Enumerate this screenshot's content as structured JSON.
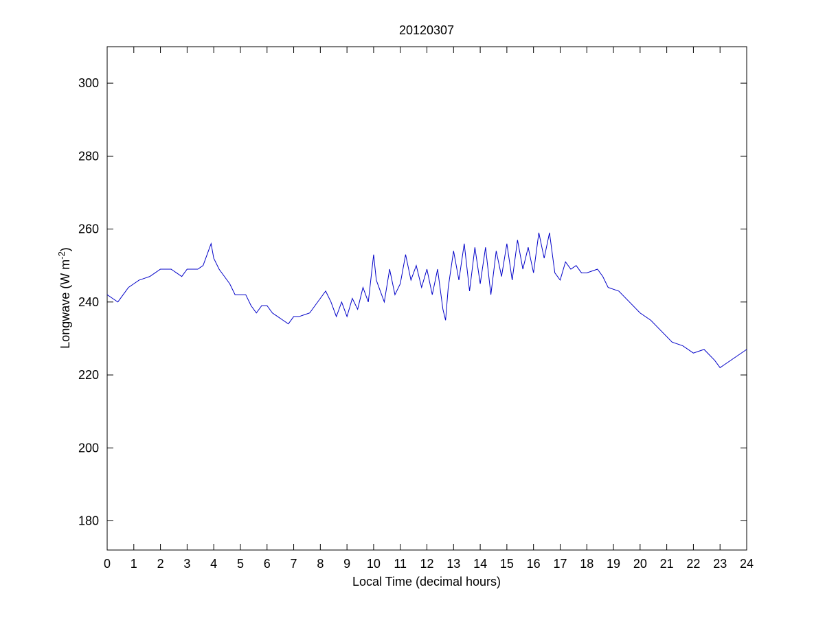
{
  "chart_data": {
    "type": "line",
    "title": "20120307",
    "xlabel": "Local Time (decimal hours)",
    "ylabel": {
      "text": "Longwave (W m",
      "sup": "-2",
      "end": ")"
    },
    "xlim": [
      0,
      24
    ],
    "ylim": [
      172,
      310
    ],
    "xticks": [
      0,
      1,
      2,
      3,
      4,
      5,
      6,
      7,
      8,
      9,
      10,
      11,
      12,
      13,
      14,
      15,
      16,
      17,
      18,
      19,
      20,
      21,
      22,
      23,
      24
    ],
    "yticks": [
      180,
      200,
      220,
      240,
      260,
      280,
      300
    ],
    "grid": false,
    "x": [
      0,
      0.2,
      0.4,
      0.6,
      0.8,
      1.0,
      1.2,
      1.4,
      1.6,
      1.8,
      2.0,
      2.2,
      2.4,
      2.6,
      2.8,
      3.0,
      3.2,
      3.4,
      3.6,
      3.8,
      3.9,
      4.0,
      4.2,
      4.4,
      4.6,
      4.8,
      5.0,
      5.2,
      5.4,
      5.6,
      5.8,
      6.0,
      6.2,
      6.4,
      6.6,
      6.8,
      7.0,
      7.2,
      7.4,
      7.6,
      7.8,
      8.0,
      8.2,
      8.4,
      8.6,
      8.8,
      9.0,
      9.2,
      9.4,
      9.6,
      9.8,
      10.0,
      10.1,
      10.2,
      10.4,
      10.6,
      10.8,
      11.0,
      11.2,
      11.4,
      11.6,
      11.8,
      12.0,
      12.2,
      12.4,
      12.6,
      12.7,
      12.8,
      13.0,
      13.2,
      13.4,
      13.6,
      13.8,
      14.0,
      14.2,
      14.4,
      14.6,
      14.8,
      15.0,
      15.2,
      15.4,
      15.6,
      15.8,
      16.0,
      16.2,
      16.4,
      16.6,
      16.8,
      17.0,
      17.2,
      17.4,
      17.6,
      17.8,
      18.0,
      18.4,
      18.6,
      18.8,
      19.2,
      19.6,
      20.0,
      20.4,
      20.8,
      21.2,
      21.6,
      22.0,
      22.4,
      22.8,
      23.0,
      23.2,
      23.6,
      24.0
    ],
    "series": [
      {
        "name": "Longwave",
        "color": "#0000c8",
        "values": [
          242,
          241,
          240,
          242,
          244,
          245,
          246,
          246.5,
          247,
          248,
          249,
          249,
          249,
          248,
          247,
          249,
          249,
          249,
          250,
          254,
          256,
          252,
          249,
          247,
          245,
          242,
          242,
          242,
          239,
          237,
          239,
          239,
          237,
          236,
          235,
          234,
          236,
          236,
          236.5,
          237,
          239,
          241,
          243,
          240,
          236,
          240,
          236,
          241,
          238,
          244,
          240,
          253,
          246,
          244,
          240,
          249,
          242,
          245,
          253,
          246,
          250,
          244,
          249,
          242,
          249,
          238,
          235,
          244,
          254,
          246,
          256,
          243,
          255,
          245,
          255,
          242,
          254,
          247,
          256,
          246,
          257,
          249,
          255,
          248,
          259,
          252,
          259,
          248,
          246,
          251,
          249,
          250,
          248,
          248,
          249,
          247,
          244,
          243,
          240,
          237,
          235,
          232,
          229,
          228,
          226,
          227,
          224,
          222,
          223,
          225,
          227
        ]
      }
    ]
  }
}
